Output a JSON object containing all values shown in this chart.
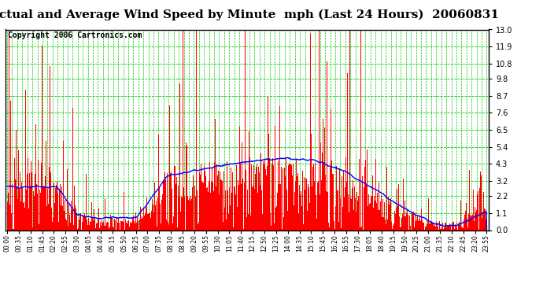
{
  "title": "Actual and Average Wind Speed by Minute  mph (Last 24 Hours)  20060831",
  "copyright": "Copyright 2006 Cartronics.com",
  "yticks": [
    0.0,
    1.1,
    2.2,
    3.2,
    4.3,
    5.4,
    6.5,
    7.6,
    8.7,
    9.8,
    10.8,
    11.9,
    13.0
  ],
  "ylim": [
    0.0,
    13.0
  ],
  "background_color": "#ffffff",
  "plot_bg_color": "#ffffff",
  "bar_color": "#ff0000",
  "line_color": "#0000ff",
  "grid_color": "#00cc00",
  "title_fontsize": 11,
  "copyright_fontsize": 7,
  "xtick_labels": [
    "00:00",
    "00:35",
    "01:10",
    "01:45",
    "02:20",
    "02:55",
    "03:30",
    "04:05",
    "04:40",
    "05:15",
    "05:50",
    "06:25",
    "07:00",
    "07:35",
    "08:10",
    "08:45",
    "09:20",
    "09:55",
    "10:30",
    "11:05",
    "11:40",
    "12:15",
    "12:50",
    "13:25",
    "14:00",
    "14:35",
    "15:10",
    "15:45",
    "16:20",
    "16:55",
    "17:30",
    "18:05",
    "18:40",
    "19:15",
    "19:50",
    "20:25",
    "21:00",
    "21:35",
    "22:10",
    "22:45",
    "23:20",
    "23:55"
  ],
  "n_minutes": 1440
}
